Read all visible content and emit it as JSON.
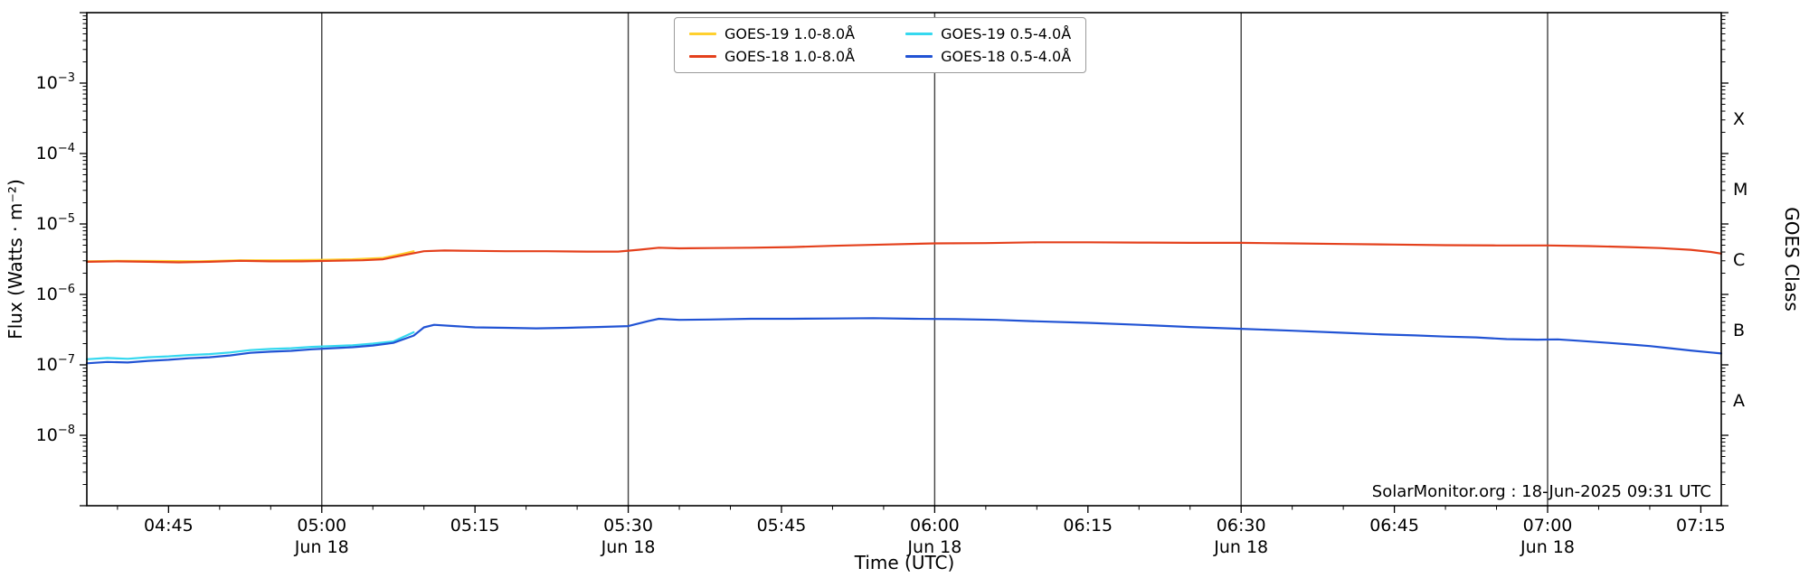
{
  "chart_data": {
    "type": "line",
    "title": "",
    "xlabel": "Time (UTC)",
    "ylabel": "Flux (Watts · m⁻²)",
    "right_axis_label": "GOES Class",
    "annotation": "SolarMonitor.org : 18-Jun-2025 09:31 UTC",
    "x_axis": {
      "start": "04:37",
      "end": "07:17",
      "major_ticks": [
        {
          "time": "04:45",
          "date": ""
        },
        {
          "time": "05:00",
          "date": "Jun 18"
        },
        {
          "time": "05:15",
          "date": ""
        },
        {
          "time": "05:30",
          "date": "Jun 18"
        },
        {
          "time": "05:45",
          "date": ""
        },
        {
          "time": "06:00",
          "date": "Jun 18"
        },
        {
          "time": "06:15",
          "date": ""
        },
        {
          "time": "06:30",
          "date": "Jun 18"
        },
        {
          "time": "06:45",
          "date": ""
        },
        {
          "time": "07:00",
          "date": "Jun 18"
        },
        {
          "time": "07:15",
          "date": ""
        }
      ],
      "minor_step_min": 5,
      "gridline_times": [
        "05:00",
        "05:30",
        "06:00",
        "06:30",
        "07:00"
      ]
    },
    "y_axis": {
      "scale": "log",
      "min_exp": -9,
      "max_exp": -2,
      "labeled_exps": [
        -3,
        -4,
        -5,
        -6,
        -7,
        -8
      ]
    },
    "goes_classes": [
      {
        "label": "X",
        "exp_mid": -3.5
      },
      {
        "label": "M",
        "exp_mid": -4.5
      },
      {
        "label": "C",
        "exp_mid": -5.5
      },
      {
        "label": "B",
        "exp_mid": -6.5
      },
      {
        "label": "A",
        "exp_mid": -7.5
      }
    ],
    "colors": {
      "grid": "#404040",
      "axis": "#000000"
    },
    "series": [
      {
        "name": "GOES-19 1.0-8.0Å",
        "color": "#ffd02e",
        "points": [
          [
            "04:37",
            2.95e-06
          ],
          [
            "04:40",
            3e-06
          ],
          [
            "04:44",
            2.98e-06
          ],
          [
            "04:48",
            2.95e-06
          ],
          [
            "04:52",
            3.05e-06
          ],
          [
            "04:56",
            3.05e-06
          ],
          [
            "05:00",
            3.1e-06
          ],
          [
            "05:03",
            3.15e-06
          ],
          [
            "05:06",
            3.3e-06
          ],
          [
            "05:08",
            3.8e-06
          ],
          [
            "05:09",
            4.1e-06
          ]
        ]
      },
      {
        "name": "GOES-18 1.0-8.0Å",
        "color": "#e4401c",
        "points": [
          [
            "04:37",
            2.9e-06
          ],
          [
            "04:40",
            2.95e-06
          ],
          [
            "04:43",
            2.9e-06
          ],
          [
            "04:46",
            2.85e-06
          ],
          [
            "04:49",
            2.9e-06
          ],
          [
            "04:52",
            3e-06
          ],
          [
            "04:55",
            2.95e-06
          ],
          [
            "04:58",
            2.95e-06
          ],
          [
            "05:01",
            3e-06
          ],
          [
            "05:04",
            3.05e-06
          ],
          [
            "05:06",
            3.15e-06
          ],
          [
            "05:08",
            3.6e-06
          ],
          [
            "05:10",
            4.1e-06
          ],
          [
            "05:12",
            4.2e-06
          ],
          [
            "05:15",
            4.15e-06
          ],
          [
            "05:18",
            4.1e-06
          ],
          [
            "05:22",
            4.1e-06
          ],
          [
            "05:26",
            4.05e-06
          ],
          [
            "05:29",
            4.05e-06
          ],
          [
            "05:31",
            4.3e-06
          ],
          [
            "05:33",
            4.6e-06
          ],
          [
            "05:35",
            4.5e-06
          ],
          [
            "05:38",
            4.55e-06
          ],
          [
            "05:42",
            4.6e-06
          ],
          [
            "05:46",
            4.7e-06
          ],
          [
            "05:50",
            4.9e-06
          ],
          [
            "05:55",
            5.1e-06
          ],
          [
            "06:00",
            5.3e-06
          ],
          [
            "06:05",
            5.35e-06
          ],
          [
            "06:10",
            5.5e-06
          ],
          [
            "06:15",
            5.5e-06
          ],
          [
            "06:20",
            5.45e-06
          ],
          [
            "06:25",
            5.4e-06
          ],
          [
            "06:30",
            5.4e-06
          ],
          [
            "06:35",
            5.3e-06
          ],
          [
            "06:40",
            5.2e-06
          ],
          [
            "06:45",
            5.1e-06
          ],
          [
            "06:50",
            5e-06
          ],
          [
            "06:55",
            4.95e-06
          ],
          [
            "07:00",
            4.95e-06
          ],
          [
            "07:04",
            4.85e-06
          ],
          [
            "07:08",
            4.7e-06
          ],
          [
            "07:11",
            4.55e-06
          ],
          [
            "07:14",
            4.3e-06
          ],
          [
            "07:16",
            4e-06
          ],
          [
            "07:17",
            3.8e-06
          ]
        ]
      },
      {
        "name": "GOES-19 0.5-4.0Å",
        "color": "#35d8ef",
        "points": [
          [
            "04:37",
            1.2e-07
          ],
          [
            "04:39",
            1.25e-07
          ],
          [
            "04:41",
            1.22e-07
          ],
          [
            "04:43",
            1.28e-07
          ],
          [
            "04:45",
            1.32e-07
          ],
          [
            "04:47",
            1.38e-07
          ],
          [
            "04:49",
            1.42e-07
          ],
          [
            "04:51",
            1.5e-07
          ],
          [
            "04:53",
            1.62e-07
          ],
          [
            "04:55",
            1.68e-07
          ],
          [
            "04:57",
            1.72e-07
          ],
          [
            "04:59",
            1.8e-07
          ],
          [
            "05:01",
            1.85e-07
          ],
          [
            "05:03",
            1.9e-07
          ],
          [
            "05:05",
            2e-07
          ],
          [
            "05:07",
            2.15e-07
          ],
          [
            "05:08",
            2.5e-07
          ],
          [
            "05:09",
            2.9e-07
          ]
        ]
      },
      {
        "name": "GOES-18 0.5-4.0Å",
        "color": "#2153d4",
        "points": [
          [
            "04:37",
            1.05e-07
          ],
          [
            "04:39",
            1.1e-07
          ],
          [
            "04:41",
            1.08e-07
          ],
          [
            "04:43",
            1.14e-07
          ],
          [
            "04:45",
            1.18e-07
          ],
          [
            "04:47",
            1.24e-07
          ],
          [
            "04:49",
            1.28e-07
          ],
          [
            "04:51",
            1.36e-07
          ],
          [
            "04:53",
            1.48e-07
          ],
          [
            "04:55",
            1.54e-07
          ],
          [
            "04:57",
            1.58e-07
          ],
          [
            "04:59",
            1.66e-07
          ],
          [
            "05:01",
            1.72e-07
          ],
          [
            "05:03",
            1.78e-07
          ],
          [
            "05:05",
            1.88e-07
          ],
          [
            "05:07",
            2.05e-07
          ],
          [
            "05:09",
            2.6e-07
          ],
          [
            "05:10",
            3.4e-07
          ],
          [
            "05:11",
            3.7e-07
          ],
          [
            "05:13",
            3.55e-07
          ],
          [
            "05:15",
            3.4e-07
          ],
          [
            "05:18",
            3.35e-07
          ],
          [
            "05:21",
            3.3e-07
          ],
          [
            "05:24",
            3.35e-07
          ],
          [
            "05:27",
            3.45e-07
          ],
          [
            "05:30",
            3.55e-07
          ],
          [
            "05:32",
            4.2e-07
          ],
          [
            "05:33",
            4.5e-07
          ],
          [
            "05:35",
            4.35e-07
          ],
          [
            "05:38",
            4.4e-07
          ],
          [
            "05:42",
            4.5e-07
          ],
          [
            "05:46",
            4.5e-07
          ],
          [
            "05:50",
            4.55e-07
          ],
          [
            "05:54",
            4.6e-07
          ],
          [
            "05:58",
            4.5e-07
          ],
          [
            "06:02",
            4.45e-07
          ],
          [
            "06:06",
            4.35e-07
          ],
          [
            "06:10",
            4.15e-07
          ],
          [
            "06:15",
            3.95e-07
          ],
          [
            "06:20",
            3.7e-07
          ],
          [
            "06:25",
            3.45e-07
          ],
          [
            "06:30",
            3.25e-07
          ],
          [
            "06:35",
            3.05e-07
          ],
          [
            "06:40",
            2.85e-07
          ],
          [
            "06:44",
            2.7e-07
          ],
          [
            "06:47",
            2.62e-07
          ],
          [
            "06:50",
            2.52e-07
          ],
          [
            "06:53",
            2.45e-07
          ],
          [
            "06:56",
            2.32e-07
          ],
          [
            "06:59",
            2.28e-07
          ],
          [
            "07:01",
            2.3e-07
          ],
          [
            "07:03",
            2.2e-07
          ],
          [
            "07:06",
            2.05e-07
          ],
          [
            "07:08",
            1.95e-07
          ],
          [
            "07:10",
            1.85e-07
          ],
          [
            "07:12",
            1.72e-07
          ],
          [
            "07:14",
            1.6e-07
          ],
          [
            "07:16",
            1.5e-07
          ],
          [
            "07:17",
            1.45e-07
          ]
        ]
      }
    ]
  }
}
